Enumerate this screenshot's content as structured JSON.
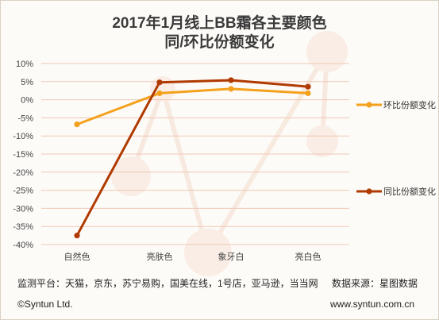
{
  "title_line1": "2017年1月线上BB霜各主要颜色",
  "title_line2": "同/环比份额变化",
  "footer": {
    "sources": "监测平台：天猫，京东，苏宁易购，国美在线，1号店，亚马逊，当当网",
    "data_source": "数据来源：星图数据",
    "copyright": "©Syntun Ltd.",
    "website": "www.syntun.com.cn"
  },
  "chart_data": {
    "type": "line",
    "categories": [
      "自然色",
      "亮肤色",
      "象牙白",
      "亮白色"
    ],
    "ylim": [
      -40,
      10
    ],
    "y_ticks": [
      "10%",
      "5%",
      "0%",
      "-5%",
      "-10%",
      "-15%",
      "-20%",
      "-25%",
      "-30%",
      "-35%",
      "-40%"
    ],
    "grid": true,
    "legend_position": "right",
    "series": [
      {
        "name": "环比份额变化",
        "values": [
          -6.8,
          1.8,
          3.0,
          1.8
        ],
        "color": "#f4a11d"
      },
      {
        "name": "同比份额变化",
        "values": [
          -37.5,
          4.8,
          5.4,
          3.6
        ],
        "color": "#b03a00"
      }
    ]
  }
}
